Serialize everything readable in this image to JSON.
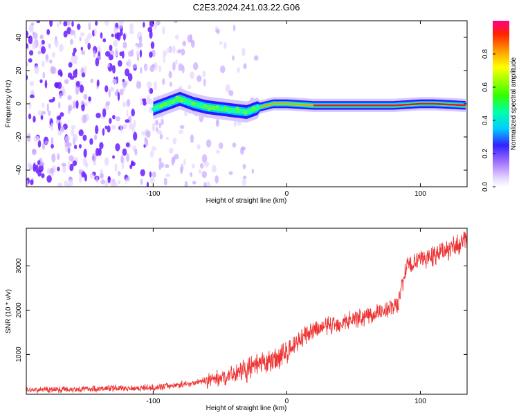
{
  "figure": {
    "title": "C2E3.2024.241.03.22.G06"
  },
  "chart_data": [
    {
      "type": "heatmap",
      "xlabel": "Height of straight line (km)",
      "ylabel": "Frequency (Hz)",
      "xlim": [
        -195,
        135
      ],
      "ylim": [
        -50,
        50
      ],
      "x_ticks": [
        -100,
        0,
        100
      ],
      "y_ticks": [
        -40,
        -20,
        0,
        20,
        40
      ],
      "colorbar": {
        "label": "Normalized spectral amplitude",
        "range": [
          0,
          1
        ],
        "ticks": [
          0.0,
          0.2,
          0.4,
          0.6,
          0.8
        ]
      },
      "signal_track": [
        {
          "x": -100,
          "y": -3
        },
        {
          "x": -90,
          "y": 0
        },
        {
          "x": -80,
          "y": 3
        },
        {
          "x": -70,
          "y": 0
        },
        {
          "x": -60,
          "y": -2
        },
        {
          "x": -50,
          "y": -3
        },
        {
          "x": -40,
          "y": -4
        },
        {
          "x": -30,
          "y": -5
        },
        {
          "x": -20,
          "y": -2
        },
        {
          "x": -10,
          "y": 0
        },
        {
          "x": 0,
          "y": 0
        },
        {
          "x": 20,
          "y": -1
        },
        {
          "x": 50,
          "y": -1
        },
        {
          "x": 80,
          "y": -1
        },
        {
          "x": 100,
          "y": 0
        },
        {
          "x": 110,
          "y": 0
        },
        {
          "x": 135,
          "y": -1
        }
      ]
    },
    {
      "type": "line",
      "xlabel": "Height of straight line (km)",
      "ylabel": "SNR (10 * v/v)",
      "xlim": [
        -195,
        135
      ],
      "ylim": [
        100,
        3850
      ],
      "x_ticks": [
        -100,
        0,
        100
      ],
      "y_ticks": [
        1000,
        2000,
        3000
      ],
      "color": "#ee3333",
      "trend": [
        {
          "x": -195,
          "y": 200
        },
        {
          "x": -150,
          "y": 220
        },
        {
          "x": -100,
          "y": 250
        },
        {
          "x": -75,
          "y": 330
        },
        {
          "x": -50,
          "y": 470
        },
        {
          "x": -25,
          "y": 700
        },
        {
          "x": -10,
          "y": 870
        },
        {
          "x": 0,
          "y": 1050
        },
        {
          "x": 10,
          "y": 1350
        },
        {
          "x": 25,
          "y": 1600
        },
        {
          "x": 50,
          "y": 1800
        },
        {
          "x": 75,
          "y": 2000
        },
        {
          "x": 83,
          "y": 2150
        },
        {
          "x": 86,
          "y": 2500
        },
        {
          "x": 90,
          "y": 3000
        },
        {
          "x": 110,
          "y": 3250
        },
        {
          "x": 135,
          "y": 3550
        }
      ]
    }
  ]
}
